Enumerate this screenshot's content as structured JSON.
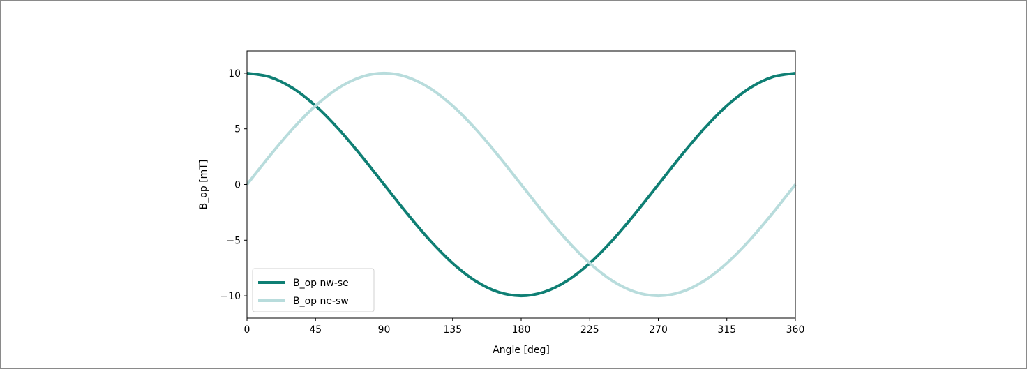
{
  "chart_data": {
    "type": "line",
    "xlabel": "Angle [deg]",
    "ylabel": "B_op [mT]",
    "xlim": [
      0,
      360
    ],
    "ylim": [
      -12,
      12
    ],
    "xticks": [
      0,
      45,
      90,
      135,
      180,
      225,
      270,
      315,
      360
    ],
    "xtick_labels": [
      "0",
      "45",
      "90",
      "135",
      "180",
      "225",
      "270",
      "315",
      "360"
    ],
    "yticks": [
      10,
      5,
      0,
      -5,
      -10
    ],
    "ytick_labels": [
      "10",
      "5",
      "0",
      "−5",
      "−10"
    ],
    "grid": false,
    "legend_position": "lower-left",
    "x": [
      0,
      15,
      30,
      45,
      60,
      75,
      90,
      105,
      120,
      135,
      150,
      165,
      180,
      195,
      210,
      225,
      240,
      255,
      270,
      285,
      300,
      315,
      330,
      345,
      360
    ],
    "series": [
      {
        "name": "B_op nw-se",
        "color": "#0f7f74",
        "values": [
          10,
          9.66,
          8.66,
          7.07,
          5,
          2.59,
          0,
          -2.59,
          -5,
          -7.07,
          -8.66,
          -9.66,
          -10,
          -9.66,
          -8.66,
          -7.07,
          -5,
          -2.59,
          0,
          2.59,
          5,
          7.07,
          8.66,
          9.66,
          10
        ]
      },
      {
        "name": "B_op ne-sw",
        "color": "#b8dcdc",
        "values": [
          0,
          2.59,
          5,
          7.07,
          8.66,
          9.66,
          10,
          9.66,
          8.66,
          7.07,
          5,
          2.59,
          0,
          -2.59,
          -5,
          -7.07,
          -8.66,
          -9.66,
          -10,
          -9.66,
          -8.66,
          -7.07,
          -5,
          -2.59,
          0
        ]
      }
    ]
  }
}
